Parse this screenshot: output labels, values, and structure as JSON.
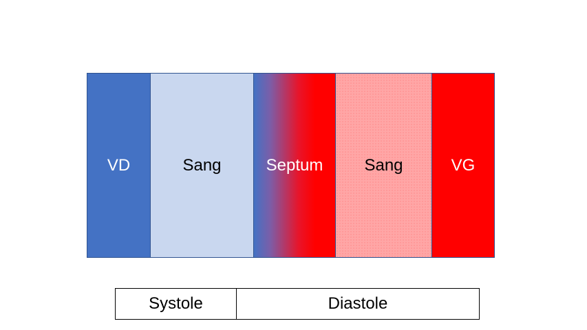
{
  "layers": [
    {
      "label": "VD",
      "color": "#4472c4"
    },
    {
      "label": "Sang",
      "color": "#c9d7ef"
    },
    {
      "label": "Septum",
      "color_from": "#4472c4",
      "color_to": "#ff0000"
    },
    {
      "label": "Sang",
      "color": "#ffa6a6"
    },
    {
      "label": "VG",
      "color": "#ff0000"
    }
  ],
  "phases": [
    {
      "label": "Systole"
    },
    {
      "label": "Diastole"
    }
  ]
}
